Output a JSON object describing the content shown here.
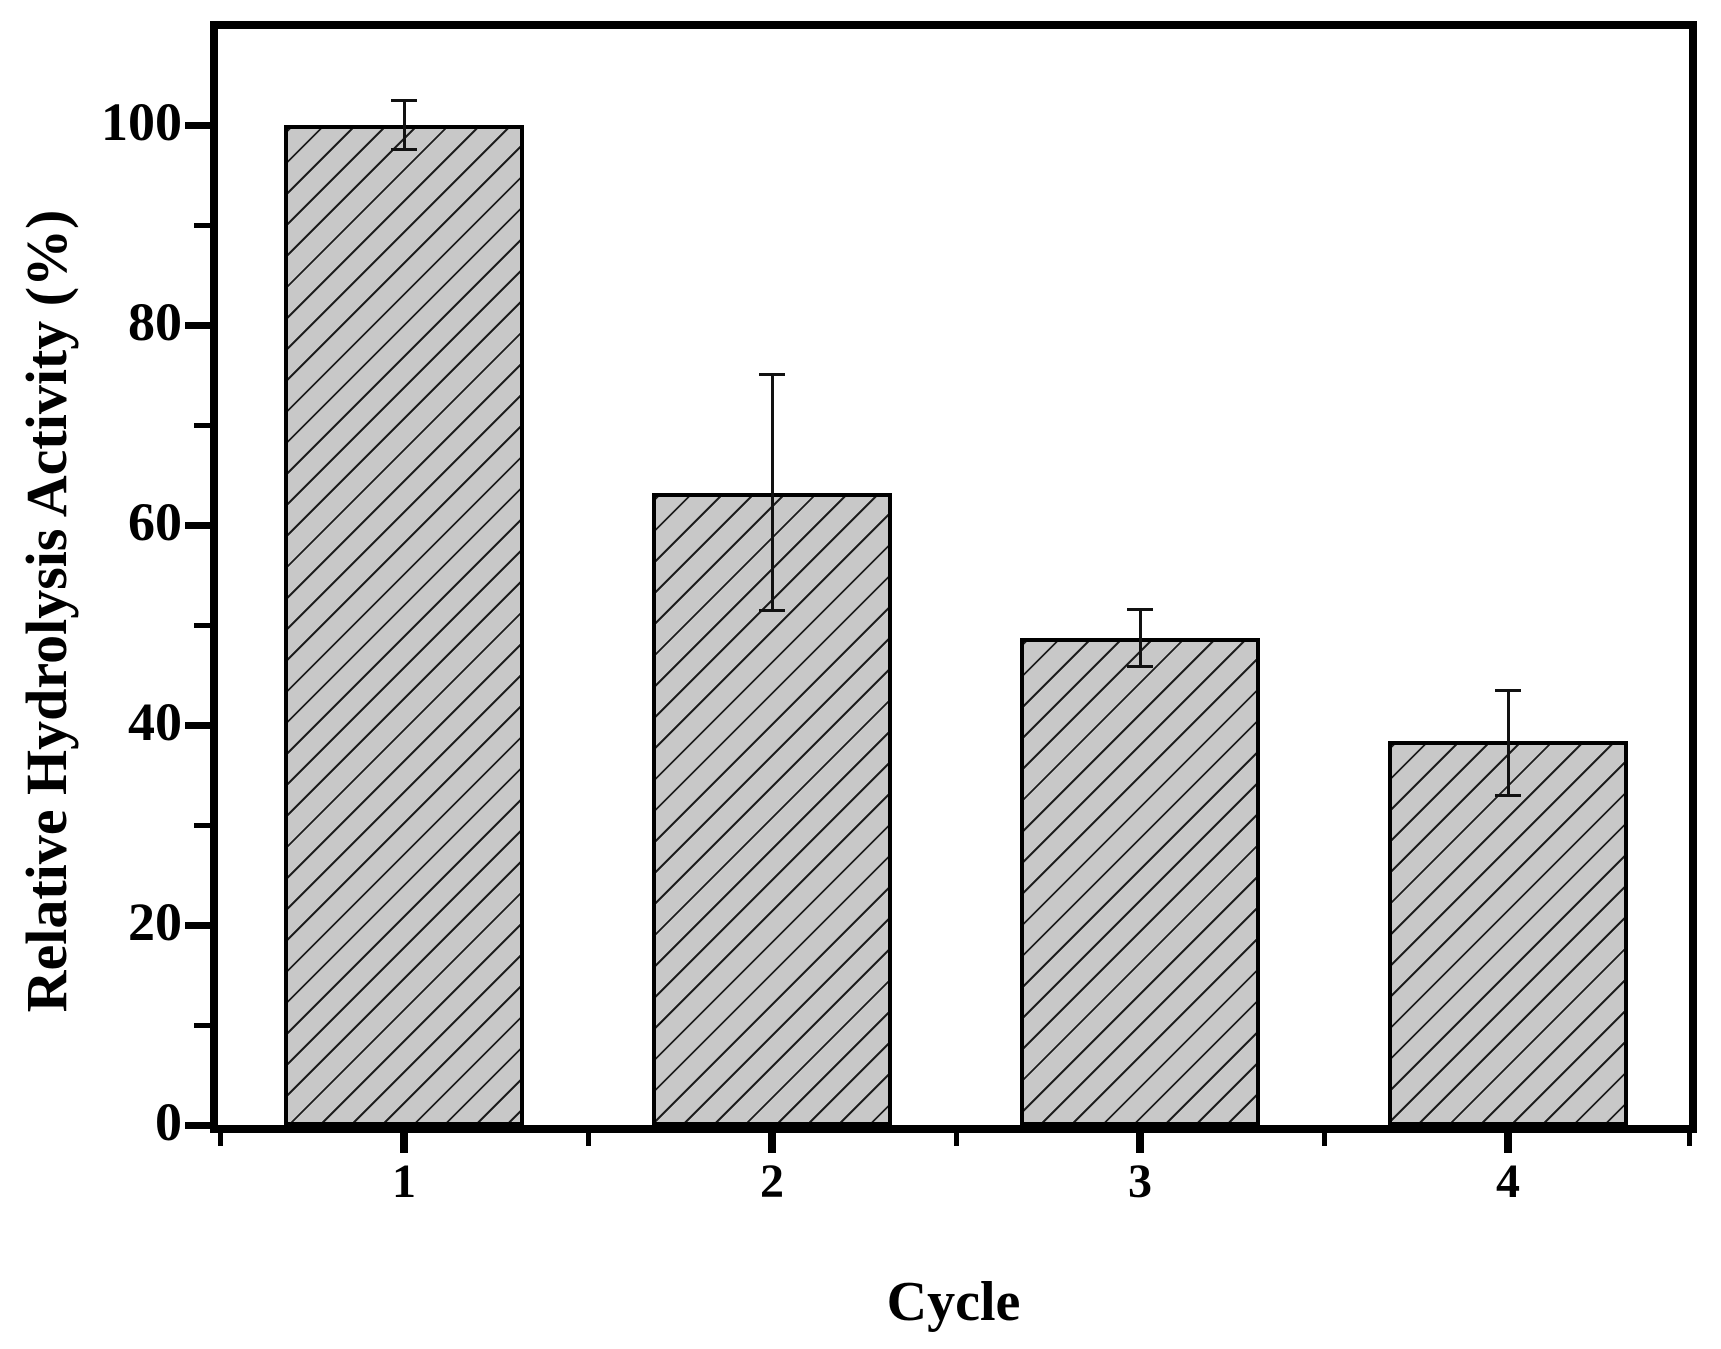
{
  "figure": {
    "background_color": "#ffffff",
    "frame_color": "#000000"
  },
  "chart_data": {
    "type": "bar",
    "title": "",
    "xlabel": "Cycle",
    "ylabel": "Relative Hydrolysis Activity (%)",
    "categories": [
      "1",
      "2",
      "3",
      "4"
    ],
    "series": [
      {
        "name": "Relative hydrolysis activity",
        "values": [
          100,
          63.2,
          48.7,
          38.4
        ],
        "error_plus": [
          2.5,
          11.9,
          2.9,
          5.1
        ],
        "error_minus": [
          2.5,
          11.8,
          2.9,
          5.5
        ]
      }
    ],
    "ylim": [
      0,
      110
    ],
    "y_major_ticks": [
      0,
      20,
      40,
      60,
      80,
      100
    ],
    "y_minor_ticks": [
      10,
      30,
      50,
      70,
      90
    ],
    "x_minor_tick_positions": [
      0.5,
      1.5,
      2.5,
      3.5,
      4.5
    ],
    "grid": false,
    "legend": false,
    "bar_style": {
      "fill": "#c8c8c8",
      "hatch": "forward-diagonal",
      "hatch_color": "#1c1c1c",
      "edge_color": "#000000",
      "error_color": "#111111"
    }
  }
}
